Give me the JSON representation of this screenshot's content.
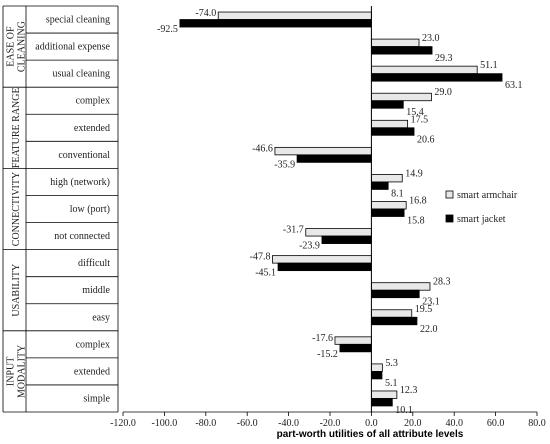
{
  "chart_data": {
    "type": "bar",
    "orientation": "horizontal",
    "xlabel": "part-worth  utilities of all attribute levels",
    "xlim": [
      -120,
      80
    ],
    "xticks": [
      "-120.0",
      "-100.0",
      "-80.0",
      "-60.0",
      "-40.0",
      "-20.0",
      "0.0",
      "20.0",
      "40.0",
      "60.0",
      "80.0"
    ],
    "legend_position": "right",
    "series": [
      {
        "name": "smart armchair",
        "color": "#e8e8e8",
        "values": [
          -74.0,
          23.0,
          51.1,
          29.0,
          17.5,
          -46.6,
          14.9,
          16.8,
          -31.7,
          -47.8,
          28.3,
          19.5,
          -17.6,
          5.3,
          12.3
        ]
      },
      {
        "name": "smart jacket",
        "color": "#000000",
        "values": [
          -92.5,
          29.3,
          63.1,
          15.4,
          20.6,
          -35.9,
          8.1,
          15.8,
          -23.9,
          -45.1,
          23.1,
          22.0,
          -15.2,
          5.1,
          10.1
        ]
      }
    ],
    "value_labels": {
      "smart_armchair": [
        "-74.0",
        "23.0",
        "51.1",
        "29.0",
        "17.5",
        "-46.6",
        "14.9",
        "16.8",
        "-31.7",
        "-47.8",
        "28.3",
        "19.5",
        "-17.6",
        "5.3",
        "12.3"
      ],
      "smart_jacket": [
        "-92.5",
        "29.3",
        "63.1",
        "15.4",
        "20.6",
        "-35.9",
        "8.1",
        "15.8",
        "-23.9",
        "-45.1",
        "23.1",
        "22.0",
        "-15.2",
        "5.1",
        "10.1"
      ]
    },
    "categories": [
      "special cleaning",
      "additional expense",
      "usual cleaning",
      "complex",
      "extended",
      "conventional",
      "high (network)",
      "low (port)",
      "not connected",
      "difficult",
      "middle",
      "easy",
      "complex",
      "extended",
      "simple"
    ],
    "groups": [
      {
        "lines": [
          "EASE OF",
          "CLEANING"
        ],
        "count": 3
      },
      {
        "lines": [
          "FEATURE RANGE"
        ],
        "count": 3
      },
      {
        "lines": [
          "CONNECTIVITY"
        ],
        "count": 3
      },
      {
        "lines": [
          "USABILITY"
        ],
        "count": 3
      },
      {
        "lines": [
          "INPUT",
          "MODALITY"
        ],
        "count": 3
      }
    ],
    "grid": false
  }
}
